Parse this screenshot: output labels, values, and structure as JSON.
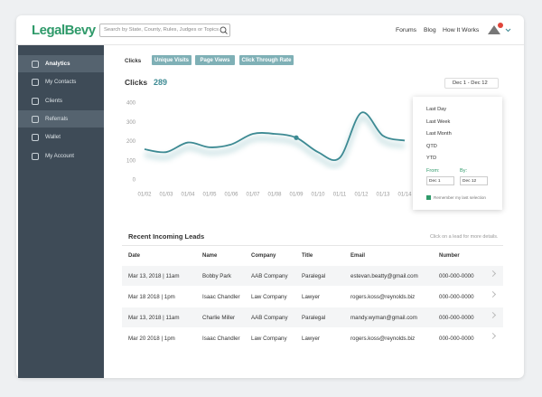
{
  "header": {
    "logo": "LegalBevy",
    "search_placeholder": "Search by State, County, Rules, Judges or Topics",
    "nav": [
      "Forums",
      "Blog",
      "How It Works"
    ]
  },
  "sidebar": {
    "items": [
      "Analytics",
      "My Contacts",
      "Clients",
      "Referrals",
      "Wallet",
      "My Account"
    ]
  },
  "tabs": {
    "label": "Clicks",
    "buttons": [
      "Unique Visits",
      "Page Views",
      "Click Through Rate"
    ]
  },
  "clicks_chart": {
    "type": "line",
    "title": "Clicks",
    "total": 289,
    "categories": [
      "01/02",
      "01/03",
      "01/04",
      "01/05",
      "01/06",
      "01/07",
      "01/08",
      "01/09",
      "01/10",
      "01/11",
      "01/12",
      "01/13",
      "01/14"
    ],
    "values": [
      160,
      145,
      195,
      170,
      185,
      240,
      240,
      220,
      145,
      115,
      350,
      230,
      205
    ],
    "color": "#3d8a93",
    "ylim": [
      0,
      400
    ],
    "yticks": [
      0,
      100,
      200,
      300,
      400
    ]
  },
  "date_filter": {
    "range": "Dec 1 - Dec 12",
    "options": [
      "Last Day",
      "Last Week",
      "Last Month",
      "QTD",
      "YTD"
    ],
    "from_label": "From:",
    "by_label": "By:",
    "from": "Dec 1",
    "by": "Dec 12",
    "remember": "Remember my last selection"
  },
  "leads": {
    "title": "Recent Incoming Leads",
    "hint": "Click on a lead for more details.",
    "columns": [
      "Date",
      "Name",
      "Company",
      "Title",
      "Email",
      "Number"
    ],
    "rows": [
      [
        "Mar 13, 2018 | 11am",
        "Bobby Park",
        "AAB Company",
        "Paralegal",
        "estevan.beatty@gmail.com",
        "000-000-0000"
      ],
      [
        "Mar 18 2018 | 1pm",
        "Isaac Chandler",
        "Law Company",
        "Lawyer",
        "rogers.koss@reynolds.biz",
        "000-000-0000"
      ],
      [
        "Mar 13, 2018 | 11am",
        "Charlie Miller",
        "AAB Company",
        "Paralegal",
        "mandy.wyman@gmail.com",
        "000-000-0000"
      ],
      [
        "Mar 20 2018 | 1pm",
        "Isaac Chandler",
        "Law Company",
        "Lawyer",
        "rogers.koss@reynolds.biz",
        "000-000-0000"
      ]
    ]
  }
}
